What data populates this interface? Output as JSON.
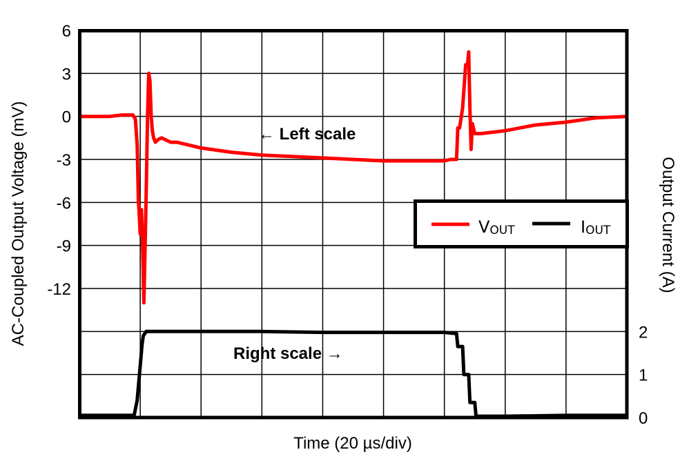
{
  "chart_data": {
    "type": "line",
    "title": "",
    "xlabel": "Time (20 µs/div)",
    "ylabel_left": "AC-Coupled Output Voltage (mV)",
    "ylabel_right": "Output Current (A)",
    "grid": true,
    "x_divisions": 9,
    "y_divisions": 9,
    "left_ticks": [
      "6",
      "3",
      "0",
      "-3",
      "-6",
      "-9",
      "-12"
    ],
    "left_tick_values": [
      6,
      3,
      0,
      -3,
      -6,
      -9,
      -12
    ],
    "right_ticks": [
      "2",
      "1",
      "0"
    ],
    "right_tick_values": [
      2,
      1,
      0
    ],
    "ylim_left": [
      -21,
      6
    ],
    "ylim_right": [
      0,
      9
    ],
    "x_unit": "divisions",
    "xlim": [
      0,
      9
    ],
    "legend": {
      "position": "inside-right",
      "entries": [
        {
          "label_main": "V",
          "label_sub": "OUT",
          "color": "#ff0000"
        },
        {
          "label_main": "I",
          "label_sub": "OUT",
          "color": "#000000"
        }
      ]
    },
    "annotations": [
      {
        "text": "← Left scale",
        "x_div": 2.95,
        "y_mV": -1.3
      },
      {
        "text": "Right scale →",
        "x_div": 2.5,
        "y_A": 1.5
      }
    ],
    "series": [
      {
        "name": "VOUT",
        "axis": "left",
        "color": "#ff0000",
        "x": [
          0,
          0.5,
          0.7,
          0.88,
          0.92,
          0.95,
          0.97,
          0.98,
          1.0,
          1.02,
          1.04,
          1.06,
          1.08,
          1.1,
          1.12,
          1.14,
          1.16,
          1.18,
          1.2,
          1.22,
          1.25,
          1.3,
          1.35,
          1.4,
          1.5,
          1.6,
          1.8,
          2.0,
          2.5,
          3.0,
          3.5,
          4.0,
          4.5,
          5.0,
          5.5,
          6.0,
          6.1,
          6.15,
          6.2,
          6.22,
          6.25,
          6.3,
          6.35,
          6.38,
          6.4,
          6.42,
          6.44,
          6.46,
          6.5,
          6.6,
          7.0,
          7.5,
          8.0,
          8.5,
          9.0
        ],
        "values": [
          0.0,
          0.0,
          0.1,
          0.1,
          -0.2,
          -2.0,
          -6.0,
          -6.5,
          -8.2,
          -6.5,
          -9.0,
          -13.0,
          -9.0,
          -5.0,
          0.0,
          3.0,
          2.5,
          0.0,
          -1.0,
          -1.5,
          -1.8,
          -1.6,
          -1.5,
          -1.6,
          -1.8,
          -1.8,
          -2.0,
          -2.2,
          -2.5,
          -2.7,
          -2.8,
          -2.9,
          -3.0,
          -3.1,
          -3.1,
          -3.1,
          -3.0,
          -3.0,
          -3.0,
          -0.8,
          -0.8,
          0.6,
          3.6,
          3.6,
          4.5,
          0.5,
          -2.3,
          -0.5,
          -1.2,
          -1.2,
          -1.0,
          -0.6,
          -0.4,
          -0.1,
          0.0
        ]
      },
      {
        "name": "IOUT",
        "axis": "right",
        "color": "#000000",
        "x": [
          0,
          0.9,
          0.95,
          1.0,
          1.03,
          1.05,
          1.1,
          1.2,
          2.0,
          3.0,
          4.0,
          5.0,
          6.0,
          6.2,
          6.22,
          6.3,
          6.32,
          6.4,
          6.42,
          6.5,
          6.52,
          7.0,
          8.0,
          9.0
        ],
        "values": [
          0.05,
          0.05,
          0.4,
          1.2,
          1.7,
          1.9,
          2.0,
          2.0,
          2.0,
          2.0,
          1.98,
          1.98,
          1.98,
          1.95,
          1.65,
          1.65,
          1.0,
          1.0,
          0.35,
          0.35,
          0.03,
          0.03,
          0.05,
          0.05
        ]
      }
    ]
  }
}
